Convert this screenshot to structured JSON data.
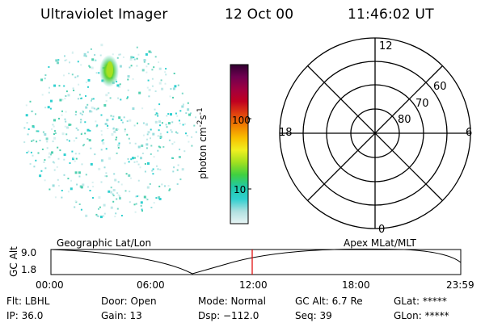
{
  "header": {
    "instrument": "Ultraviolet Imager",
    "date": "12 Oct 00",
    "time": "11:46:02 UT"
  },
  "colorbar": {
    "unit_label": "photon cm",
    "exp1": "-2",
    "unit_mid": "s",
    "exp2": "-1",
    "tick_100": "100",
    "tick_10": "10",
    "stops": [
      "#e8f4f4",
      "#b0e0e0",
      "#30d0d0",
      "#20c8a8",
      "#40d040",
      "#a0e020",
      "#f0f020",
      "#f8c000",
      "#f08000",
      "#e04010",
      "#c00020",
      "#a00040",
      "#700050",
      "#300030"
    ]
  },
  "polar_plot": {
    "top_label": "12",
    "bottom_label": "0",
    "left_label": "18",
    "right_label": "6",
    "ring_labels": [
      "60",
      "70",
      "80"
    ]
  },
  "timeline": {
    "left_title": "Geographic Lat/Lon",
    "right_title": "Apex MLat/MLT",
    "ylabel": "GC Alt",
    "ymax": "9.0",
    "ymin": "1.8",
    "ticks": [
      "00:00",
      "06:00",
      "12:00",
      "18:00",
      "23:59"
    ],
    "marker_time": "11:46"
  },
  "info": {
    "flt": "Flt: LBHL",
    "ip": "IP: 36.0",
    "door": "Door: Open",
    "gain": "Gain: 13",
    "mode": "Mode: Normal",
    "dsp": "Dsp: −112.0",
    "gcalt": "GC Alt: 6.7 Re",
    "seq": "Seq: 39",
    "glat": "GLat: *****",
    "glon": "GLon: *****"
  }
}
